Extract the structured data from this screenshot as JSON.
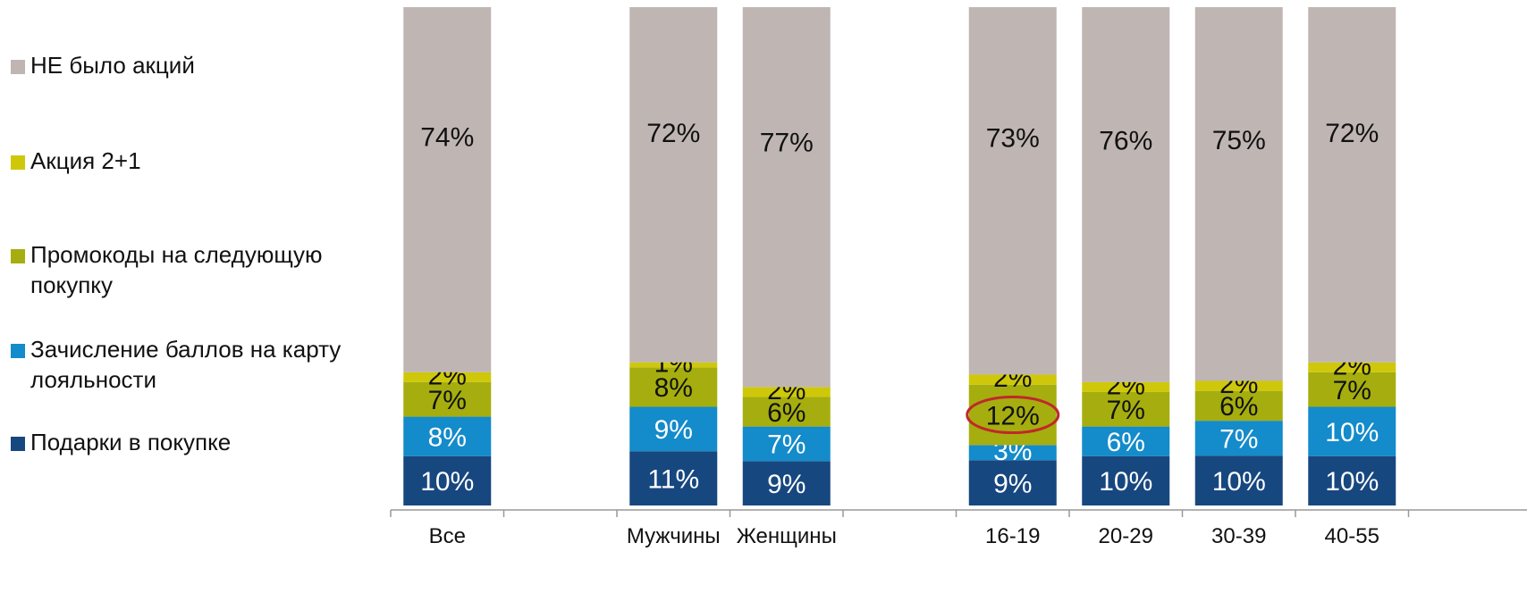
{
  "chart_data": {
    "type": "bar",
    "stacked": true,
    "orientation": "vertical",
    "categories": [
      "Все",
      "Мужчины",
      "Женщины",
      "16-19",
      "20-29",
      "30-39",
      "40-55"
    ],
    "category_slots": [
      0,
      2,
      3,
      5,
      6,
      7,
      8
    ],
    "series": [
      {
        "name": "Подарки в покупке",
        "values": [
          10,
          11,
          9,
          9,
          10,
          10,
          10
        ],
        "labels": [
          "10%",
          "11%",
          "9%",
          "9%",
          "10%",
          "10%",
          "10%"
        ],
        "color": "#17477f",
        "label_color": "#ffffff"
      },
      {
        "name": "Зачисление баллов на карту лояльности",
        "values": [
          8,
          9,
          7,
          3,
          6,
          7,
          10
        ],
        "labels": [
          "8%",
          "9%",
          "7%",
          "3%",
          "6%",
          "7%",
          "10%"
        ],
        "color": "#148bca",
        "label_color": "#ffffff"
      },
      {
        "name": "Промокоды на следующую покупку",
        "values": [
          7,
          8,
          6,
          12,
          7,
          6,
          7
        ],
        "labels": [
          "7%",
          "8%",
          "6%",
          "12%",
          "7%",
          "6%",
          "7%"
        ],
        "color": "#a5ae0e",
        "label_color": "#111111"
      },
      {
        "name": "Акция 2+1",
        "values": [
          2,
          1,
          2,
          2,
          2,
          2,
          2
        ],
        "labels": [
          "2%",
          "1%",
          "2%",
          "2%",
          "2%",
          "2%",
          "2%"
        ],
        "color": "#cfc80a",
        "label_color": "#111111"
      },
      {
        "name": "НЕ было акций",
        "values": [
          74,
          72,
          77,
          73,
          76,
          75,
          72
        ],
        "labels": [
          "74%",
          "72%",
          "77%",
          "73%",
          "76%",
          "75%",
          "72%"
        ],
        "color": "#bfb6b3",
        "label_color": "#111111"
      }
    ],
    "legend_order": [
      "НЕ было акций",
      "Акция 2+1",
      "Промокоды на следующую покупку",
      "Зачисление баллов на карту лояльности",
      "Подарки в покупке"
    ],
    "legend_position": "left",
    "highlight": {
      "category": "16-19",
      "series": "Промокоды на следующую покупку",
      "shape": "ellipse",
      "color": "#c0282c"
    },
    "ylim": [
      0,
      100
    ],
    "grid": false
  }
}
